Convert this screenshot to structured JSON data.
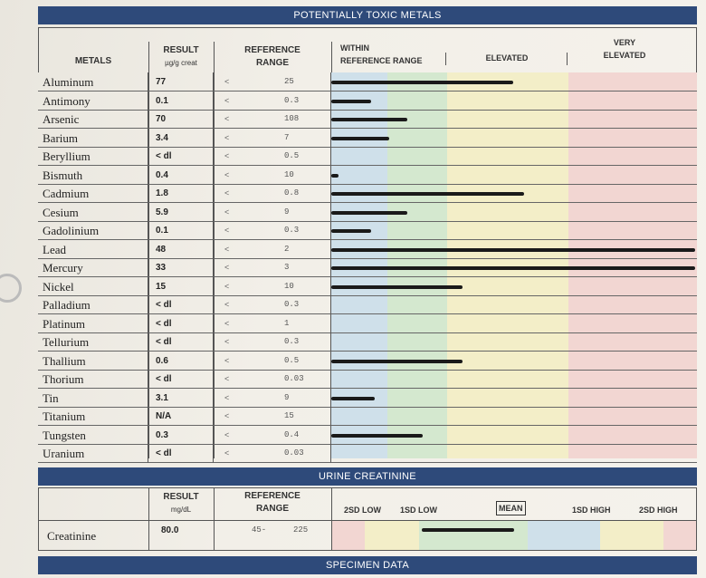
{
  "toxic": {
    "title": "POTENTIALLY TOXIC METALS",
    "col_metals": "METALS",
    "col_result": "RESULT",
    "col_result_unit": "µg/g creat",
    "col_reference_1": "REFERENCE",
    "col_reference_2": "RANGE",
    "col_within_1": "WITHIN",
    "col_within_2": "REFERENCE RANGE",
    "col_elevated": "ELEVATED",
    "col_very_1": "VERY",
    "col_very_2": "ELEVATED",
    "rows": [
      {
        "metal": "Aluminum",
        "result": "77",
        "lt": "<",
        "ref": "25",
        "bar": 0.5
      },
      {
        "metal": "Antimony",
        "result": "0.1",
        "lt": "<",
        "ref": "0.3",
        "bar": 0.11
      },
      {
        "metal": "Arsenic",
        "result": "70",
        "lt": "<",
        "ref": "108",
        "bar": 0.21
      },
      {
        "metal": "Barium",
        "result": "3.4",
        "lt": "<",
        "ref": "7",
        "bar": 0.16
      },
      {
        "metal": "Beryllium",
        "result": "< dl",
        "lt": "<",
        "ref": "0.5",
        "bar": 0
      },
      {
        "metal": "Bismuth",
        "result": "0.4",
        "lt": "<",
        "ref": "10",
        "bar": 0.02
      },
      {
        "metal": "Cadmium",
        "result": "1.8",
        "lt": "<",
        "ref": "0.8",
        "bar": 0.53
      },
      {
        "metal": "Cesium",
        "result": "5.9",
        "lt": "<",
        "ref": "9",
        "bar": 0.21
      },
      {
        "metal": "Gadolinium",
        "result": "0.1",
        "lt": "<",
        "ref": "0.3",
        "bar": 0.11
      },
      {
        "metal": "Lead",
        "result": "48",
        "lt": "<",
        "ref": "2",
        "bar": 1.0
      },
      {
        "metal": "Mercury",
        "result": "33",
        "lt": "<",
        "ref": "3",
        "bar": 1.0
      },
      {
        "metal": "Nickel",
        "result": "15",
        "lt": "<",
        "ref": "10",
        "bar": 0.36
      },
      {
        "metal": "Palladium",
        "result": "< dl",
        "lt": "<",
        "ref": "0.3",
        "bar": 0
      },
      {
        "metal": "Platinum",
        "result": "< dl",
        "lt": "<",
        "ref": "1",
        "bar": 0
      },
      {
        "metal": "Tellurium",
        "result": "< dl",
        "lt": "<",
        "ref": "0.3",
        "bar": 0
      },
      {
        "metal": "Thallium",
        "result": "0.6",
        "lt": "<",
        "ref": "0.5",
        "bar": 0.36
      },
      {
        "metal": "Thorium",
        "result": "< dl",
        "lt": "<",
        "ref": "0.03",
        "bar": 0
      },
      {
        "metal": "Tin",
        "result": "3.1",
        "lt": "<",
        "ref": "9",
        "bar": 0.12
      },
      {
        "metal": "Titanium",
        "result": "N/A",
        "lt": "<",
        "ref": "15",
        "bar": 0
      },
      {
        "metal": "Tungsten",
        "result": "0.3",
        "lt": "<",
        "ref": "0.4",
        "bar": 0.25
      },
      {
        "metal": "Uranium",
        "result": "< dl",
        "lt": "<",
        "ref": "0.03",
        "bar": 0
      }
    ]
  },
  "creatinine": {
    "title": "URINE CREATININE",
    "col_result": "RESULT",
    "col_result_unit": "mg/dL",
    "col_reference_1": "REFERENCE",
    "col_reference_2": "RANGE",
    "scale_2sd_low": "2SD LOW",
    "scale_1sd_low": "1SD LOW",
    "scale_mean": "MEAN",
    "scale_1sd_high": "1SD HIGH",
    "scale_2sd_high": "2SD HIGH",
    "row_label": "Creatinine",
    "row_result": "80.0",
    "row_ref_low": "45-",
    "row_ref_high": "225"
  },
  "specimen": {
    "title": "SPECIMEN DATA"
  },
  "colors": {
    "header": "#2e4a7a",
    "zone_within_blue": "#cfe0ea",
    "zone_within_green": "#d4e8cf",
    "zone_elevated": "#f3eec8",
    "zone_very": "#f2d6d2"
  }
}
